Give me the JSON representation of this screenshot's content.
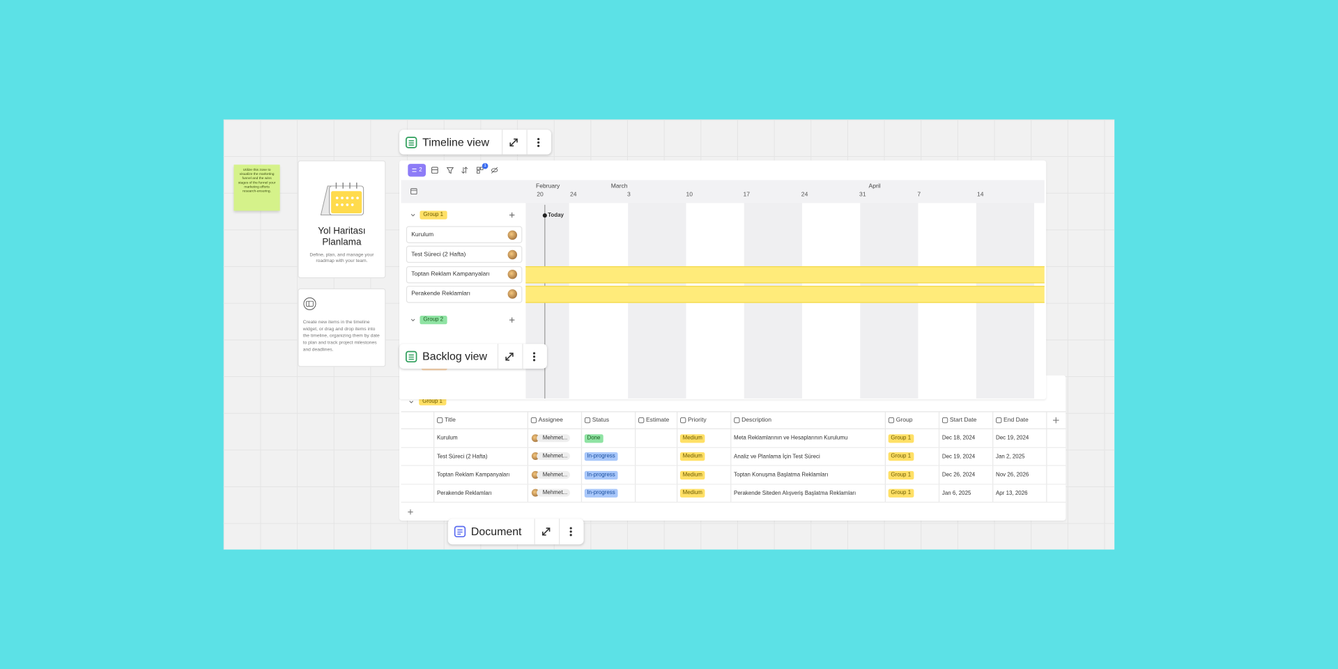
{
  "sticky_note": "Utilize this zone to visualize the marketing funnel and the wins stages of the funnel your marketing efforts research-ensuring.",
  "template_card": {
    "title": "Yol Haritası Planlama",
    "description": "Define, plan, and manage your roadmap with your team."
  },
  "info_card": {
    "text": "Create new items in the timeline widget, or drag and drop items into the timeline, organizing them by date to plan and track project milestones and deadlines."
  },
  "timeline": {
    "title": "Timeline view",
    "toolbar_count": "2",
    "filter_badge": "1",
    "months": [
      "February",
      "March",
      "April"
    ],
    "weeks": [
      "20",
      "24",
      "3",
      "10",
      "17",
      "24",
      "31",
      "7",
      "14"
    ],
    "today": "Today",
    "groups": [
      {
        "name": "Group 1",
        "items": [
          "Kurulum",
          "Test Süreci (2 Hafta)",
          "Toptan Reklam Kampanyaları",
          "Perakende Reklamları"
        ]
      },
      {
        "name": "Group 2",
        "items": []
      }
    ]
  },
  "backlog": {
    "title": "Backlog view",
    "group": "Group 1",
    "columns": [
      "Title",
      "Assignee",
      "Status",
      "Estimate",
      "Priority",
      "Description",
      "Group",
      "Start Date",
      "End Date"
    ],
    "rows": [
      [
        "Kurulum",
        "Mehmet...",
        "Done",
        "",
        "Medium",
        "Meta Reklamlarının ve Hesaplarının Kurulumu",
        "Group 1",
        "Dec 18, 2024",
        "Dec 19, 2024"
      ],
      [
        "Test Süreci (2 Hafta)",
        "Mehmet...",
        "In-progress",
        "",
        "Medium",
        "Analiz ve Planlama İçin Test Süreci",
        "Group 1",
        "Dec 19, 2024",
        "Jan 2, 2025"
      ],
      [
        "Toptan Reklam Kampanyaları",
        "Mehmet...",
        "In-progress",
        "",
        "Medium",
        "Toptan Konuşma Başlatma  Reklamları",
        "Group 1",
        "Dec 26, 2024",
        "Nov 26, 2026"
      ],
      [
        "Perakende Reklamları",
        "Mehmet...",
        "In-progress",
        "",
        "Medium",
        "Perakende Siteden Alışveriş Başlatma Reklamları",
        "Group 1",
        "Jan 6, 2025",
        "Apr 13, 2026"
      ]
    ]
  },
  "document": {
    "title": "Document"
  }
}
